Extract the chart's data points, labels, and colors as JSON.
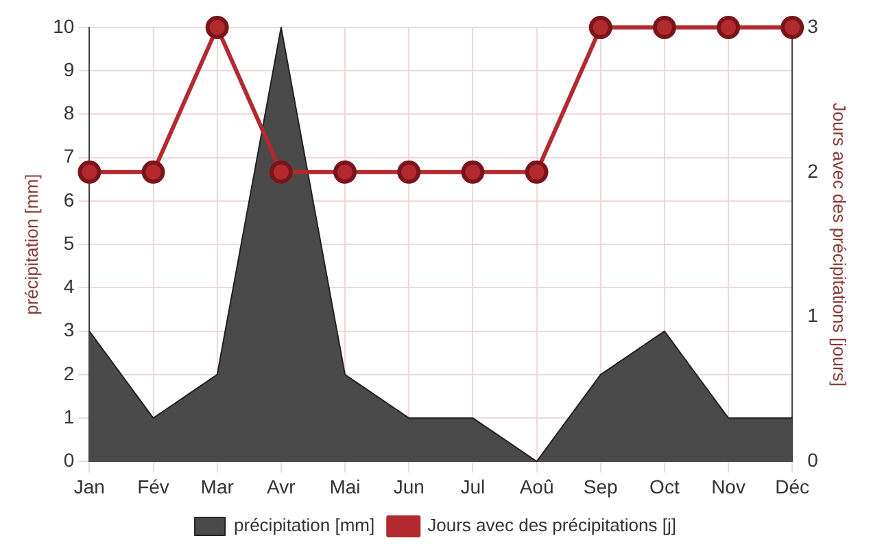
{
  "chart_data": {
    "type": "area",
    "xlabel": null,
    "ylabel": "précipitation [mm]",
    "y2label": "Jours avec des précipitations [jours]",
    "categories": [
      "Jan",
      "Fév",
      "Mar",
      "Avr",
      "Mai",
      "Jun",
      "Jul",
      "Aoû",
      "Sep",
      "Oct",
      "Nov",
      "Déc"
    ],
    "series": [
      {
        "name": "précipitation [mm]",
        "type": "area",
        "color": "#4a4a4a",
        "values": [
          3,
          1,
          2,
          10,
          2,
          1,
          1,
          0,
          2,
          3,
          1,
          1
        ]
      },
      {
        "name": "Jours avec des précipitations [j]",
        "type": "line",
        "axis": "y2",
        "color": "#b22a30",
        "marker": "circle",
        "values": [
          2,
          2,
          3,
          2,
          2,
          2,
          2,
          2,
          3,
          3,
          3,
          3
        ]
      }
    ],
    "ylim": [
      0,
      10
    ],
    "yticks": [
      0,
      1,
      2,
      3,
      4,
      5,
      6,
      7,
      8,
      9,
      10
    ],
    "y2lim": [
      0,
      3
    ],
    "y2ticks": [
      0,
      1,
      2,
      3
    ],
    "grid": true,
    "legend": "bottom"
  }
}
